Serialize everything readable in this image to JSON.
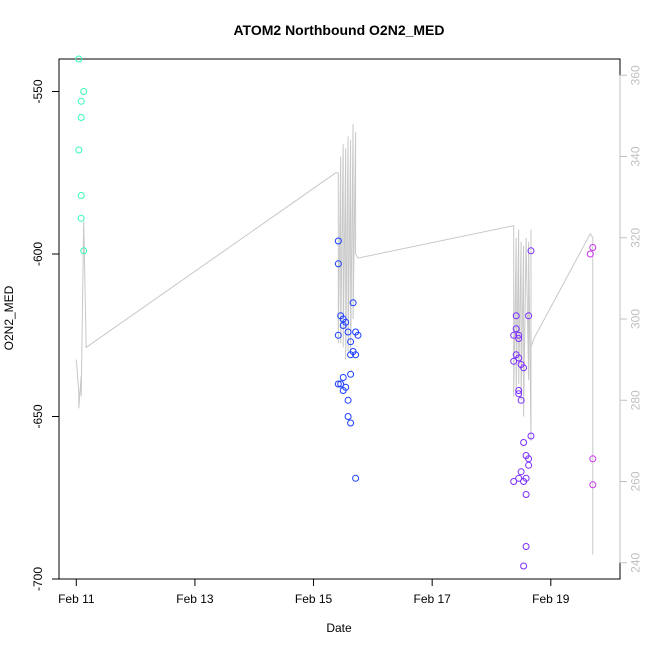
{
  "chart_data": {
    "type": "scatter",
    "title": "ATOM2 Northbound O2N2_MED",
    "xlabel": "Date",
    "ylabel": "O2N2_MED",
    "x_unit": "date",
    "xlim": [
      "2021-02-10T17:00",
      "2021-02-20T04:00"
    ],
    "ylim": [
      -700,
      -540
    ],
    "x_ticks": [
      {
        "date": "2021-02-11",
        "label": "Feb 11"
      },
      {
        "date": "2021-02-13",
        "label": "Feb 13"
      },
      {
        "date": "2021-02-15",
        "label": "Feb 15"
      },
      {
        "date": "2021-02-17",
        "label": "Feb 17"
      },
      {
        "date": "2021-02-19",
        "label": "Feb 19"
      }
    ],
    "y_ticks": [
      -550,
      -600,
      -650,
      -700
    ],
    "y2_ticks": [
      240,
      260,
      280,
      300,
      320,
      340,
      360
    ],
    "y2_lim": [
      236,
      364
    ],
    "y2_color": "#c0c0c0",
    "grid": false,
    "series": [
      {
        "color": "#33ffb3",
        "points": [
          [
            "2021-02-11T01:00",
            -540
          ],
          [
            "2021-02-11T02:00",
            -553
          ],
          [
            "2021-02-11T03:00",
            -550
          ],
          [
            "2021-02-11T02:00",
            -558
          ],
          [
            "2021-02-11T01:00",
            -568
          ],
          [
            "2021-02-11T02:00",
            -582
          ],
          [
            "2021-02-11T02:00",
            -589
          ],
          [
            "2021-02-11T03:00",
            -599
          ]
        ]
      },
      {
        "color": "#1a3dff",
        "points": [
          [
            "2021-02-15T10:00",
            -596
          ],
          [
            "2021-02-15T10:00",
            -603
          ],
          [
            "2021-02-15T11:00",
            -619
          ],
          [
            "2021-02-15T12:00",
            -620
          ],
          [
            "2021-02-15T13:00",
            -621
          ],
          [
            "2021-02-15T12:00",
            -622
          ],
          [
            "2021-02-15T14:00",
            -624
          ],
          [
            "2021-02-15T10:00",
            -625
          ],
          [
            "2021-02-15T15:00",
            -627
          ],
          [
            "2021-02-15T16:00",
            -630
          ],
          [
            "2021-02-15T17:00",
            -631
          ],
          [
            "2021-02-15T15:00",
            -631
          ],
          [
            "2021-02-15T16:00",
            -615
          ],
          [
            "2021-02-15T18:00",
            -625
          ],
          [
            "2021-02-15T17:00",
            -624
          ],
          [
            "2021-02-15T12:00",
            -638
          ],
          [
            "2021-02-15T10:00",
            -640
          ],
          [
            "2021-02-15T11:00",
            -640
          ],
          [
            "2021-02-15T13:00",
            -641
          ],
          [
            "2021-02-15T12:00",
            -642
          ],
          [
            "2021-02-15T14:00",
            -645
          ],
          [
            "2021-02-15T14:00",
            -650
          ],
          [
            "2021-02-15T15:00",
            -652
          ],
          [
            "2021-02-15T15:00",
            -637
          ],
          [
            "2021-02-15T17:00",
            -669
          ]
        ]
      },
      {
        "color": "#7b2cff",
        "points": [
          [
            "2021-02-18T10:00",
            -619
          ],
          [
            "2021-02-18T10:00",
            -623
          ],
          [
            "2021-02-18T11:00",
            -625
          ],
          [
            "2021-02-18T09:00",
            -625
          ],
          [
            "2021-02-18T11:00",
            -626
          ],
          [
            "2021-02-18T10:00",
            -631
          ],
          [
            "2021-02-18T11:00",
            -632
          ],
          [
            "2021-02-18T09:00",
            -633
          ],
          [
            "2021-02-18T12:00",
            -634
          ],
          [
            "2021-02-18T13:00",
            -635
          ],
          [
            "2021-02-18T15:00",
            -619
          ],
          [
            "2021-02-18T16:00",
            -599
          ],
          [
            "2021-02-18T11:00",
            -642
          ],
          [
            "2021-02-18T11:00",
            -643
          ],
          [
            "2021-02-18T12:00",
            -645
          ],
          [
            "2021-02-18T16:00",
            -656
          ],
          [
            "2021-02-18T13:00",
            -658
          ],
          [
            "2021-02-18T14:00",
            -662
          ],
          [
            "2021-02-18T15:00",
            -663
          ],
          [
            "2021-02-18T15:00",
            -665
          ],
          [
            "2021-02-18T12:00",
            -667
          ],
          [
            "2021-02-18T11:00",
            -669
          ],
          [
            "2021-02-18T09:00",
            -670
          ],
          [
            "2021-02-18T13:00",
            -670
          ],
          [
            "2021-02-18T14:00",
            -669
          ],
          [
            "2021-02-18T14:00",
            -674
          ],
          [
            "2021-02-18T14:00",
            -690
          ],
          [
            "2021-02-18T13:00",
            -696
          ]
        ]
      },
      {
        "color": "#cc33ee",
        "points": [
          [
            "2021-02-19T17:00",
            -598
          ],
          [
            "2021-02-19T16:00",
            -600
          ],
          [
            "2021-02-19T17:00",
            -663
          ],
          [
            "2021-02-19T17:00",
            -671
          ]
        ]
      }
    ],
    "secondary_line": {
      "color": "#c8c8c8",
      "axis": "right",
      "points": [
        [
          "2021-02-11T00:00",
          290
        ],
        [
          "2021-02-11T01:00",
          282
        ],
        [
          "2021-02-11T01:00",
          278
        ],
        [
          "2021-02-11T02:00",
          286
        ],
        [
          "2021-02-11T02:00",
          281
        ],
        [
          "2021-02-11T03:00",
          324
        ],
        [
          "2021-02-11T04:00",
          293
        ],
        [
          "2021-02-15T09:00",
          336
        ],
        [
          "2021-02-15T10:00",
          336
        ],
        [
          "2021-02-15T10:00",
          294
        ],
        [
          "2021-02-15T11:00",
          340
        ],
        [
          "2021-02-15T11:00",
          294
        ],
        [
          "2021-02-15T12:00",
          343
        ],
        [
          "2021-02-15T12:00",
          293
        ],
        [
          "2021-02-15T13:00",
          342
        ],
        [
          "2021-02-15T13:00",
          290
        ],
        [
          "2021-02-15T14:00",
          345
        ],
        [
          "2021-02-15T14:00",
          292
        ],
        [
          "2021-02-15T15:00",
          344
        ],
        [
          "2021-02-15T15:00",
          292
        ],
        [
          "2021-02-15T16:00",
          348
        ],
        [
          "2021-02-15T16:00",
          300
        ],
        [
          "2021-02-15T17:00",
          346
        ],
        [
          "2021-02-15T17:00",
          316
        ],
        [
          "2021-02-15T18:00",
          315
        ],
        [
          "2021-02-18T09:00",
          323
        ],
        [
          "2021-02-18T09:00",
          281
        ],
        [
          "2021-02-18T10:00",
          320
        ],
        [
          "2021-02-18T10:00",
          282
        ],
        [
          "2021-02-18T11:00",
          322
        ],
        [
          "2021-02-18T11:00",
          284
        ],
        [
          "2021-02-18T12:00",
          319
        ],
        [
          "2021-02-18T12:00",
          280
        ],
        [
          "2021-02-18T13:00",
          318
        ],
        [
          "2021-02-18T13:00",
          276
        ],
        [
          "2021-02-18T14:00",
          320
        ],
        [
          "2021-02-18T15:00",
          285
        ],
        [
          "2021-02-18T15:00",
          319
        ],
        [
          "2021-02-18T16:00",
          270
        ],
        [
          "2021-02-18T16:00",
          322
        ],
        [
          "2021-02-18T16:00",
          293
        ],
        [
          "2021-02-18T17:00",
          295
        ],
        [
          "2021-02-19T16:00",
          321
        ],
        [
          "2021-02-19T17:00",
          320
        ],
        [
          "2021-02-19T17:00",
          242
        ]
      ]
    }
  }
}
